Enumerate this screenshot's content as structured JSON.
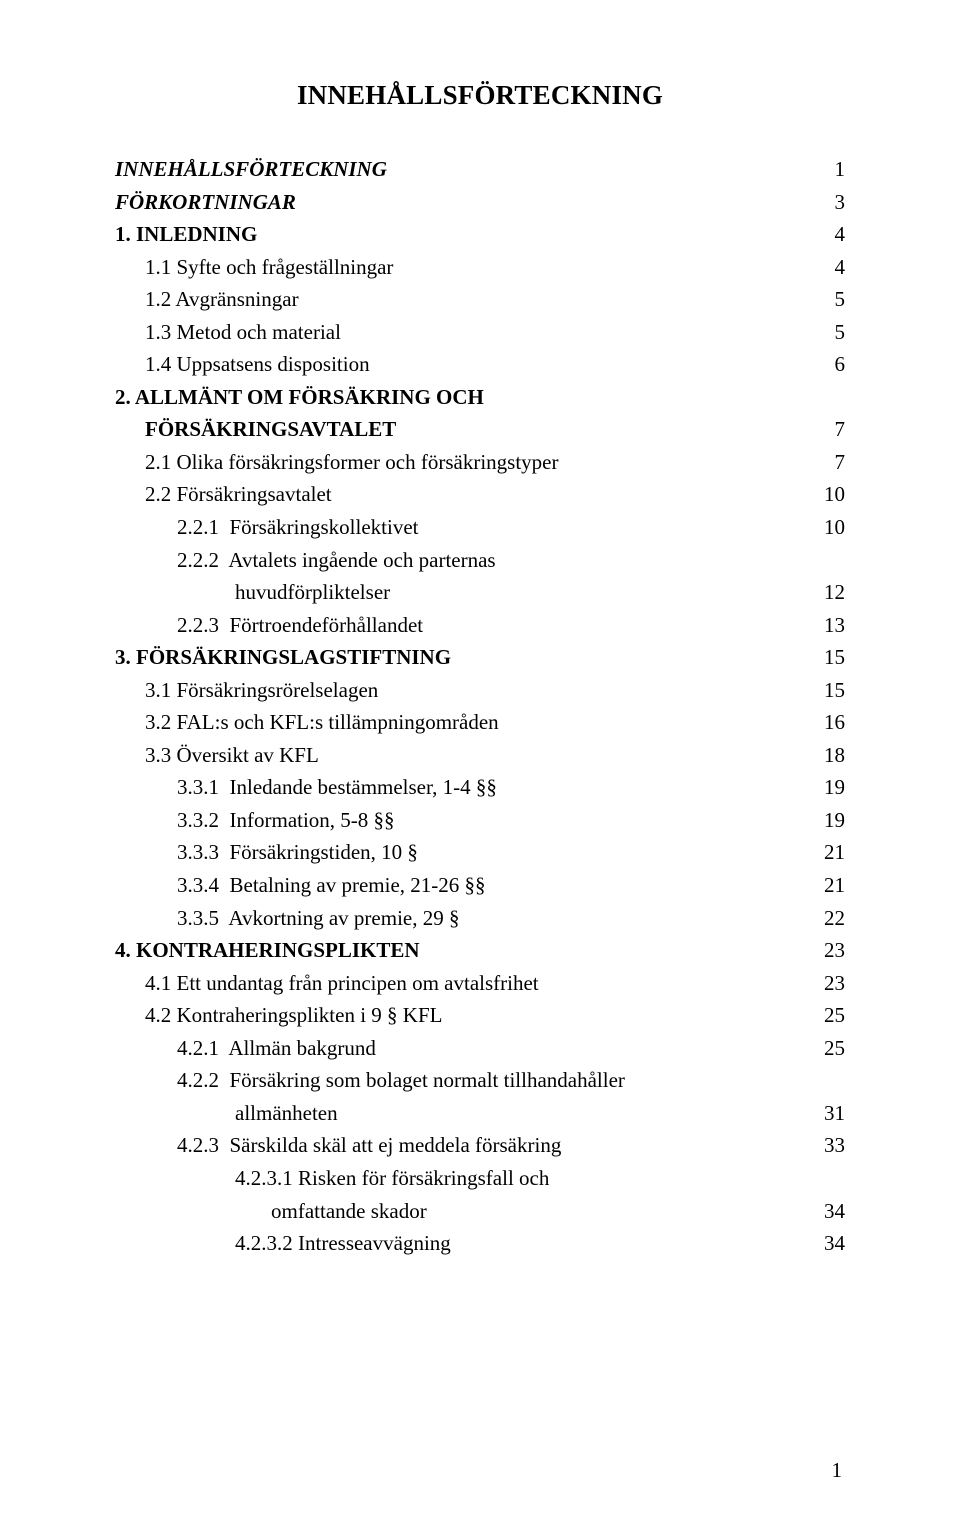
{
  "title": "INNEHÅLLSFÖRTECKNING",
  "footer_page": "1",
  "entries": [
    {
      "label": "INNEHÅLLSFÖRTECKNING",
      "page": "1",
      "indent": 0,
      "style": "bold-i"
    },
    {
      "label": "FÖRKORTNINGAR",
      "page": "3",
      "indent": 0,
      "style": "bold-i"
    },
    {
      "label": "1. INLEDNING",
      "page": "4",
      "indent": 0,
      "style": "bold"
    },
    {
      "label": "1.1 Syfte och frågeställningar",
      "page": "4",
      "indent": 1,
      "style": ""
    },
    {
      "label": "1.2 Avgränsningar",
      "page": "5",
      "indent": 1,
      "style": ""
    },
    {
      "label": "1.3 Metod och material",
      "page": "5",
      "indent": 1,
      "style": ""
    },
    {
      "label": "1.4 Uppsatsens disposition",
      "page": "6",
      "indent": 1,
      "style": ""
    },
    {
      "label": "2. ALLMÄNT OM FÖRSÄKRING OCH",
      "page": "",
      "indent": 0,
      "style": "bold"
    },
    {
      "label": "FÖRSÄKRINGSAVTALET",
      "page": "7",
      "indent": 1,
      "style": "bold"
    },
    {
      "label": "2.1 Olika försäkringsformer och försäkringstyper",
      "page": "7",
      "indent": 1,
      "style": ""
    },
    {
      "label": "2.2 Försäkringsavtalet",
      "page": "10",
      "indent": 1,
      "style": ""
    },
    {
      "label": "2.2.1  Försäkringskollektivet",
      "page": "10",
      "indent": 2,
      "style": ""
    },
    {
      "label": "2.2.2  Avtalets ingående och parternas",
      "page": "",
      "indent": 2,
      "style": ""
    },
    {
      "label": "huvudförpliktelser",
      "page": "12",
      "indent": 3,
      "style": ""
    },
    {
      "label": "2.2.3  Förtroendeförhållandet",
      "page": "13",
      "indent": 2,
      "style": ""
    },
    {
      "label": "3. FÖRSÄKRINGSLAGSTIFTNING",
      "page": "15",
      "indent": 0,
      "style": "bold"
    },
    {
      "label": "3.1 Försäkringsrörelselagen",
      "page": "15",
      "indent": 1,
      "style": ""
    },
    {
      "label": "3.2 FAL:s och KFL:s tillämpningområden",
      "page": "16",
      "indent": 1,
      "style": ""
    },
    {
      "label": "3.3 Översikt av KFL",
      "page": "18",
      "indent": 1,
      "style": ""
    },
    {
      "label": "3.3.1  Inledande bestämmelser, 1-4 §§",
      "page": "19",
      "indent": 2,
      "style": ""
    },
    {
      "label": "3.3.2  Information, 5-8 §§",
      "page": "19",
      "indent": 2,
      "style": ""
    },
    {
      "label": "3.3.3  Försäkringstiden, 10 §",
      "page": "21",
      "indent": 2,
      "style": ""
    },
    {
      "label": "3.3.4  Betalning av premie, 21-26 §§",
      "page": "21",
      "indent": 2,
      "style": ""
    },
    {
      "label": "3.3.5  Avkortning av premie, 29 §",
      "page": "22",
      "indent": 2,
      "style": ""
    },
    {
      "label": "4. KONTRAHERINGSPLIKTEN",
      "page": "23",
      "indent": 0,
      "style": "bold"
    },
    {
      "label": "4.1 Ett undantag från principen om avtalsfrihet",
      "page": "23",
      "indent": 1,
      "style": ""
    },
    {
      "label": "4.2 Kontraheringsplikten i 9 § KFL",
      "page": "25",
      "indent": 1,
      "style": ""
    },
    {
      "label": "4.2.1  Allmän bakgrund",
      "page": "25",
      "indent": 2,
      "style": ""
    },
    {
      "label": "4.2.2  Försäkring som bolaget normalt tillhandahåller",
      "page": "",
      "indent": 2,
      "style": ""
    },
    {
      "label": "allmänheten",
      "page": "31",
      "indent": 3,
      "style": ""
    },
    {
      "label": "4.2.3  Särskilda skäl att ej meddela försäkring",
      "page": "33",
      "indent": 2,
      "style": ""
    },
    {
      "label": "4.2.3.1 Risken för försäkringsfall och",
      "page": "",
      "indent": 3,
      "style": ""
    },
    {
      "label": "omfattande skador",
      "page": "34",
      "indent": 4,
      "style": ""
    },
    {
      "label": "4.2.3.2 Intresseavvägning",
      "page": "34",
      "indent": 3,
      "style": ""
    }
  ]
}
